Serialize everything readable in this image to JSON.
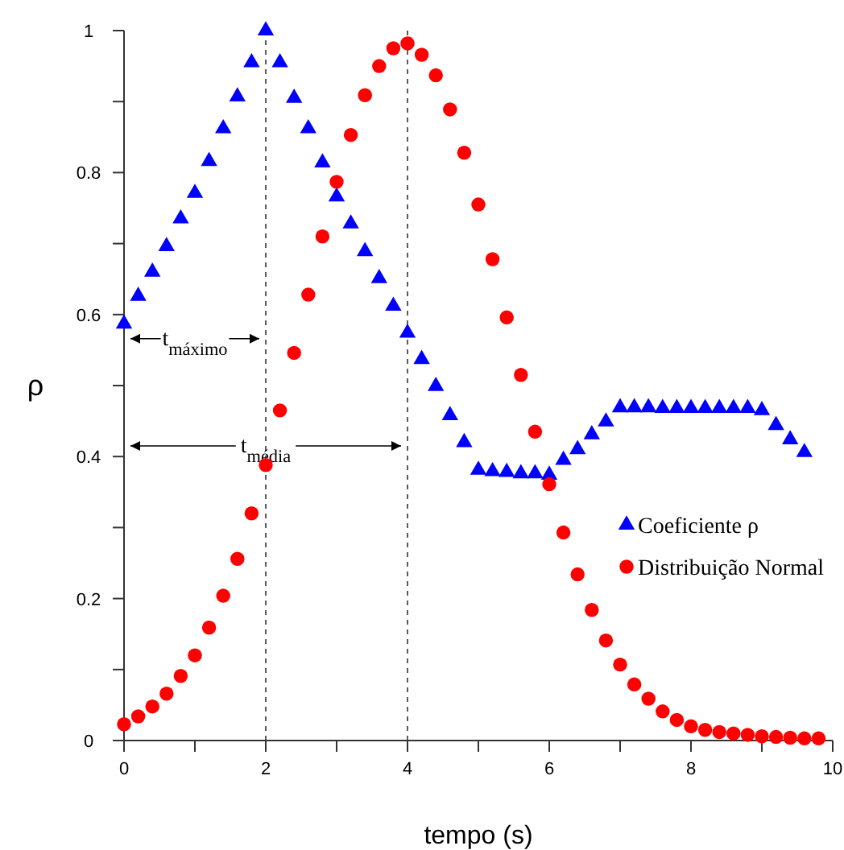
{
  "chart_data": {
    "type": "scatter",
    "xlabel": "tempo (s)",
    "ylabel": "ρ",
    "x": [
      0,
      0.2,
      0.4,
      0.6,
      0.8,
      1,
      1.2,
      1.4,
      1.6,
      1.8,
      2,
      2.2,
      2.4,
      2.6,
      2.8,
      3,
      3.2,
      3.4,
      3.6,
      3.8,
      4,
      4.2,
      4.4,
      4.6,
      4.8,
      5,
      5.2,
      5.4,
      5.6,
      5.8,
      6,
      6.2,
      6.4,
      6.6,
      6.8,
      7,
      7.2,
      7.4,
      7.6,
      7.8,
      8,
      8.2,
      8.4,
      8.6,
      8.8,
      9,
      9.2,
      9.4,
      9.6,
      9.8
    ],
    "series": [
      {
        "name": "Coeficiente ρ",
        "color": "#0000ff",
        "marker": "triangle",
        "values": [
          0.587,
          0.626,
          0.66,
          0.696,
          0.735,
          0.771,
          0.816,
          0.862,
          0.907,
          0.955,
          1.0,
          0.955,
          0.905,
          0.862,
          0.814,
          0.766,
          0.728,
          0.689,
          0.651,
          0.612,
          0.574,
          0.537,
          0.499,
          0.458,
          0.42,
          0.381,
          0.379,
          0.378,
          0.376,
          0.376,
          0.374,
          0.395,
          0.41,
          0.431,
          0.449,
          0.469,
          0.469,
          0.469,
          0.468,
          0.468,
          0.468,
          0.468,
          0.468,
          0.468,
          0.468,
          0.465,
          0.444,
          0.424,
          0.406,
          null
        ]
      },
      {
        "name": "Distribuição Normal",
        "color": "#ff0000",
        "marker": "circle",
        "values": [
          0.023,
          0.034,
          0.048,
          0.066,
          0.091,
          0.12,
          0.159,
          0.204,
          0.256,
          0.32,
          0.388,
          0.465,
          0.546,
          0.628,
          0.71,
          0.787,
          0.853,
          0.909,
          0.95,
          0.975,
          0.982,
          0.966,
          0.937,
          0.889,
          0.828,
          0.755,
          0.678,
          0.596,
          0.515,
          0.435,
          0.361,
          0.293,
          0.234,
          0.184,
          0.141,
          0.107,
          0.079,
          0.059,
          0.041,
          0.029,
          0.02,
          0.015,
          0.012,
          0.01,
          0.008,
          0.006,
          0.005,
          0.004,
          0.003,
          0.003
        ]
      }
    ],
    "xlim": [
      0,
      10
    ],
    "ylim": [
      0,
      1
    ],
    "xticks": [
      0,
      {
        "value": 1,
        "label": null
      },
      2,
      {
        "value": 3,
        "label": null
      },
      4,
      {
        "value": 5,
        "label": null
      },
      6,
      {
        "value": 7,
        "label": null
      },
      8,
      {
        "value": 9,
        "label": null
      },
      10
    ],
    "yticks": [
      0,
      {
        "value": 0.1,
        "label": null
      },
      0.2,
      {
        "value": 0.3,
        "label": null
      },
      0.4,
      {
        "value": 0.5,
        "label": null
      },
      0.6,
      {
        "value": 0.7,
        "label": null
      },
      0.8,
      {
        "value": 0.9,
        "label": null
      },
      1
    ],
    "ref_lines": [
      {
        "axis": "x",
        "value": 2,
        "line_style": "dashed",
        "color": "#333333"
      },
      {
        "axis": "x",
        "value": 4,
        "line_style": "dashed",
        "color": "#333333"
      }
    ],
    "annotations": [
      {
        "text": "t$_{máximo}$",
        "x": 2,
        "y": 0.566
      },
      {
        "text": "t$_{média}$",
        "x": 4,
        "y": 0.415
      }
    ],
    "legend": "right",
    "grid": false
  }
}
